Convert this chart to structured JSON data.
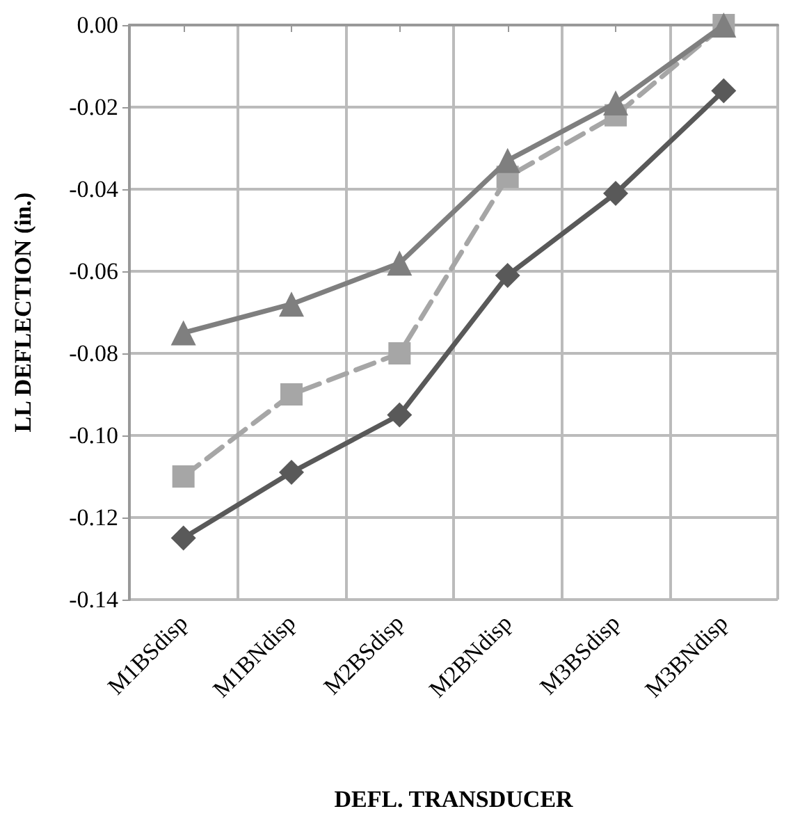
{
  "chart_data": {
    "type": "line",
    "xlabel": "DEFL. TRANSDUCER",
    "ylabel": "LL DEFLECTION (in.)",
    "categories": [
      "M1BSdisp",
      "M1BNdisp",
      "M2BSdisp",
      "M2BNdisp",
      "M3BSdisp",
      "M3BNdisp"
    ],
    "series": [
      {
        "color": "#7f7f7f",
        "marker": "triangle",
        "line_style": "solid",
        "values": [
          -0.075,
          -0.068,
          -0.058,
          -0.033,
          -0.019,
          0.0
        ]
      },
      {
        "color": "#a6a6a6",
        "marker": "square",
        "line_style": "dashed",
        "values": [
          -0.11,
          -0.09,
          -0.08,
          -0.037,
          -0.022,
          0.0
        ]
      },
      {
        "color": "#595959",
        "marker": "diamond",
        "line_style": "solid",
        "values": [
          -0.125,
          -0.109,
          -0.095,
          -0.061,
          -0.041,
          -0.016
        ]
      }
    ],
    "ylim": [
      -0.14,
      0.0
    ],
    "yticks": [
      {
        "value": -0.14,
        "label": "-0.14"
      },
      {
        "value": -0.12,
        "label": "-0.12"
      },
      {
        "value": -0.1,
        "label": "-0.10"
      },
      {
        "value": -0.08,
        "label": "-0.08"
      },
      {
        "value": -0.06,
        "label": "-0.06"
      },
      {
        "value": -0.04,
        "label": "-0.04"
      },
      {
        "value": -0.02,
        "label": "-0.02"
      },
      {
        "value": 0,
        "label": "0.00"
      }
    ],
    "grid": true
  }
}
